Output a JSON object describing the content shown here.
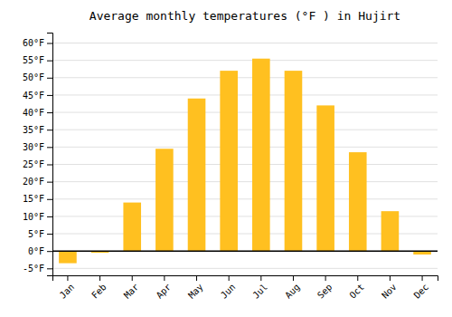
{
  "chart_data": {
    "type": "bar",
    "title": "Average monthly temperatures (°F ) in Hujirt",
    "categories": [
      "Jan",
      "Feb",
      "Mar",
      "Apr",
      "May",
      "Jun",
      "Jul",
      "Aug",
      "Sep",
      "Oct",
      "Nov",
      "Dec"
    ],
    "values": [
      -3.5,
      -0.5,
      14,
      29.5,
      44,
      52,
      55.5,
      52,
      42,
      28.5,
      11.5,
      -1.0
    ],
    "color": "#FFC020",
    "ylim": [
      -7,
      63
    ],
    "yticks": [
      {
        "value": -5,
        "label": "-5°F"
      },
      {
        "value": 0,
        "label": "0°F"
      },
      {
        "value": 5,
        "label": "5°F"
      },
      {
        "value": 10,
        "label": "10°F"
      },
      {
        "value": 15,
        "label": "15°F"
      },
      {
        "value": 20,
        "label": "20°F"
      },
      {
        "value": 25,
        "label": "25°F"
      },
      {
        "value": 30,
        "label": "30°F"
      },
      {
        "value": 35,
        "label": "35°F"
      },
      {
        "value": 40,
        "label": "40°F"
      },
      {
        "value": 45,
        "label": "45°F"
      },
      {
        "value": 50,
        "label": "50°F"
      },
      {
        "value": 55,
        "label": "55°F"
      },
      {
        "value": 60,
        "label": "60°F"
      }
    ],
    "grid": true
  }
}
